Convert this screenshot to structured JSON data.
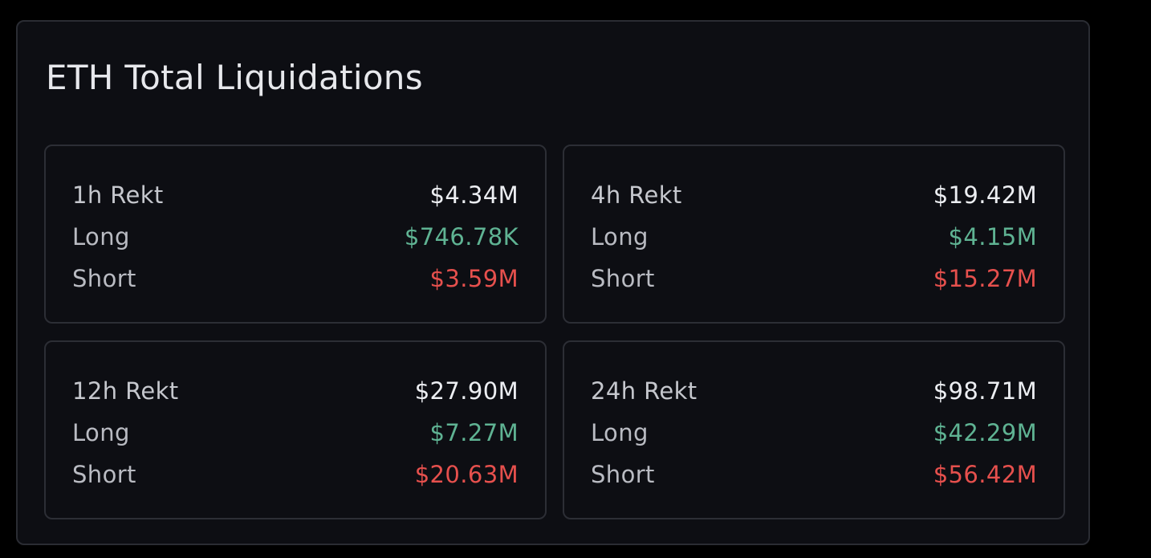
{
  "title": "ETH Total Liquidations",
  "colors": {
    "long": "#5fb393",
    "short": "#e6504d",
    "total": "#eceef2",
    "label": "#b9bbc2",
    "panel_bg": "#0d0e13",
    "border": "#2c2e35"
  },
  "cards": [
    {
      "period_label": "1h Rekt",
      "total": "$4.34M",
      "long_label": "Long",
      "long_value": "$746.78K",
      "short_label": "Short",
      "short_value": "$3.59M"
    },
    {
      "period_label": "4h Rekt",
      "total": "$19.42M",
      "long_label": "Long",
      "long_value": "$4.15M",
      "short_label": "Short",
      "short_value": "$15.27M"
    },
    {
      "period_label": "12h Rekt",
      "total": "$27.90M",
      "long_label": "Long",
      "long_value": "$7.27M",
      "short_label": "Short",
      "short_value": "$20.63M"
    },
    {
      "period_label": "24h Rekt",
      "total": "$98.71M",
      "long_label": "Long",
      "long_value": "$42.29M",
      "short_label": "Short",
      "short_value": "$56.42M"
    }
  ]
}
